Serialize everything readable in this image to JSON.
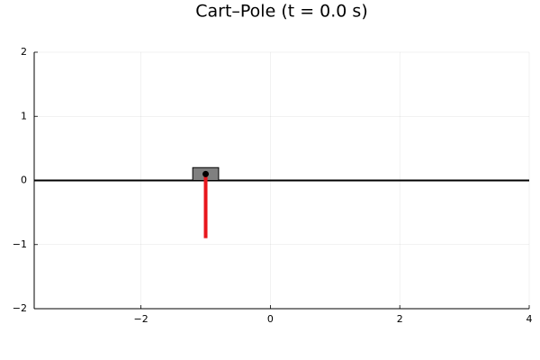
{
  "chart_data": {
    "type": "cartpole",
    "title": "Cart–Pole (t = 0.0 s)",
    "xlim": [
      -3.65,
      4
    ],
    "ylim": [
      -2,
      2
    ],
    "xticks": [
      {
        "value": -2,
        "label": "−2"
      },
      0,
      2,
      4
    ],
    "yticks": [
      {
        "value": -2,
        "label": "−2"
      },
      {
        "value": -1,
        "label": "−1"
      },
      0,
      1,
      2
    ],
    "grid": true,
    "track": {
      "y": 0,
      "color": "#000000"
    },
    "cart": {
      "x": [
        -1.2,
        -0.8
      ],
      "y": [
        0,
        0.2
      ],
      "color": "#808080"
    },
    "pole": {
      "x": [
        -1,
        -1
      ],
      "y": [
        0.1,
        -0.9
      ],
      "color": "#e8161c"
    },
    "hinge": {
      "x": -1,
      "y": 0.1,
      "color": "#000000"
    }
  }
}
